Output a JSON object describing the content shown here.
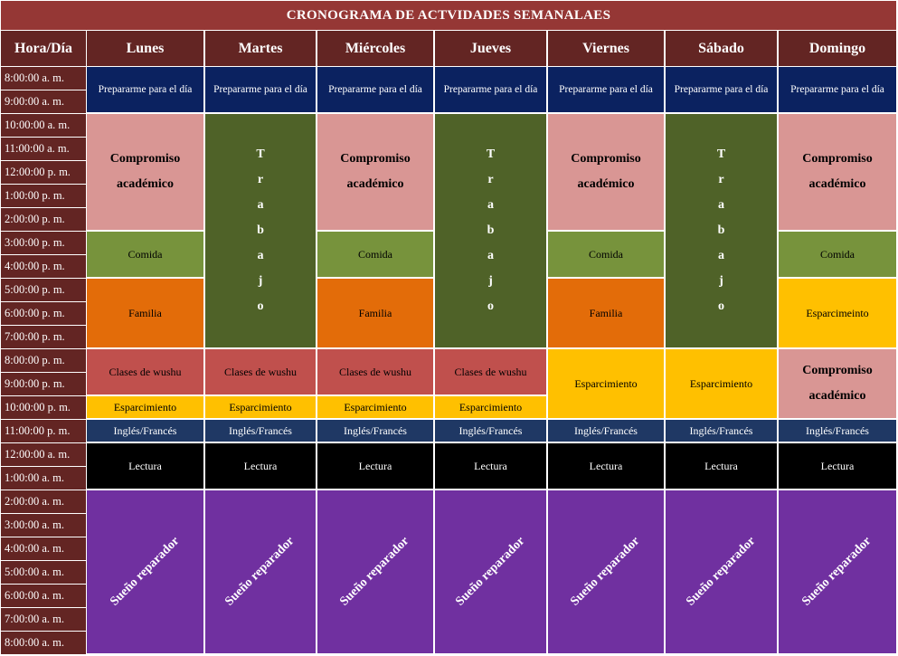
{
  "title": "CRONOGRAMA DE ACTVIDADES SEMANALAES",
  "header": {
    "corner": "Hora/Día",
    "days": [
      "Lunes",
      "Martes",
      "Miércoles",
      "Jueves",
      "Viernes",
      "Sábado",
      "Domingo"
    ]
  },
  "hours": [
    "8:00:00 a. m.",
    "9:00:00 a. m.",
    "10:00:00 a. m.",
    "11:00:00 a. m.",
    "12:00:00 p. m.",
    "1:00:00 p. m.",
    "2:00:00 p. m.",
    "3:00:00 p. m.",
    "4:00:00 p. m.",
    "5:00:00 p. m.",
    "6:00:00 p. m.",
    "7:00:00 p. m.",
    "8:00:00 p. m.",
    "9:00:00 p. m.",
    "10:00:00 p. m.",
    "11:00:00 p. m.",
    "12:00:00 a. m.",
    "1:00:00 a. m.",
    "2:00:00 a. m.",
    "3:00:00 a. m.",
    "4:00:00 a. m.",
    "5:00:00 a. m.",
    "6:00:00 a. m.",
    "7:00:00 a. m.",
    "8:00:00 a. m."
  ],
  "activities": {
    "prep": "Prepararme para el día",
    "acad_line1": "Compromiso",
    "acad_line2": "académico",
    "comida": "Comida",
    "familia": "Familia",
    "esparcimiento": "Esparcimiento",
    "esparcimiento_domingo": "Esparcimeinto",
    "wushu": "Clases de wushu",
    "ingles": "Inglés/Francés",
    "lectura": "Lectura",
    "sueno": "Sueño reparador",
    "trabajo_letters": [
      "T",
      "r",
      "a",
      "b",
      "a",
      "j",
      "o"
    ]
  },
  "colors": {
    "title_bg": "#953735",
    "header_bg": "#632523",
    "prep_bg": "#0b2260",
    "academico_bg": "#d99694",
    "comida_bg": "#77933c",
    "familia_bg": "#e36c09",
    "wushu_bg": "#c0504d",
    "esparcimiento_bg": "#ffc000",
    "ingles_bg": "#1f3864",
    "lectura_bg": "#000000",
    "sueno_bg": "#7030a0",
    "trabajo_bg": "#4f6228"
  }
}
